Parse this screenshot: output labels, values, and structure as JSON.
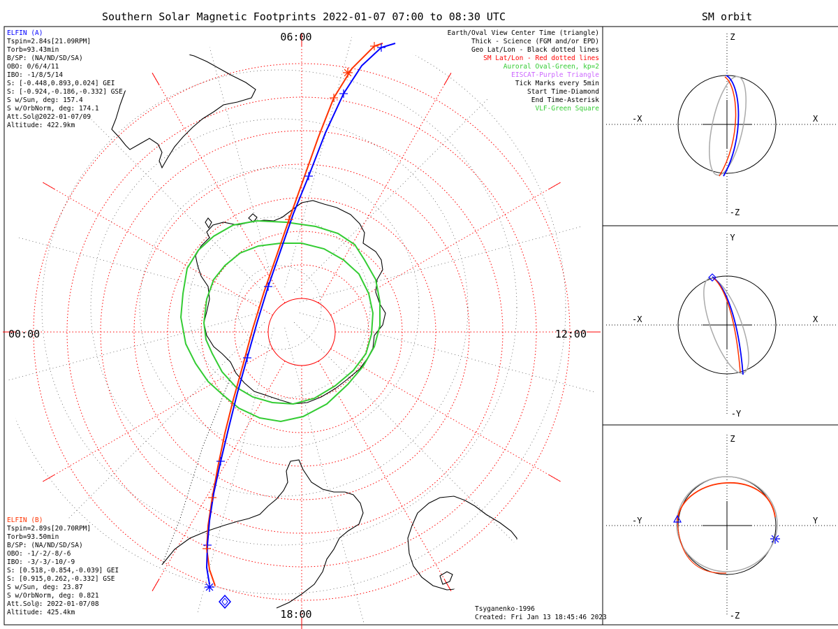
{
  "title": "Southern Solar Magnetic Footprints 2022-01-07 07:00 to 08:30 UTC",
  "side_title": "SM orbit",
  "colors": {
    "elfin_a": "#0000ff",
    "elfin_b": "#ff3300",
    "oval": "#33cc33",
    "sm_grid": "#ff0000",
    "geo": "#000000",
    "orbit_gray": "#aaaaaa"
  },
  "hours": {
    "top": "06:00",
    "left": "00:00",
    "right": "12:00",
    "bottom": "18:00"
  },
  "elfin_a": {
    "name": "ELFIN (A)",
    "lines": [
      "Tspin=2.84s[21.09RPM]",
      "Torb=93.43min",
      "B/SP: (NA/ND/SD/SA)",
      "OBO: 0/6/4/11",
      "IBO: -1/8/5/14",
      "S: [-0.448,0.893,0.024] GEI",
      "S: [-0.924,-0.186,-0.332] GSE",
      "S w/Sun, deg: 157.4",
      "S w/OrbNorm, deg: 174.1",
      "Att.Sol@2022-01-07/09",
      "Altitude: 422.9km"
    ]
  },
  "elfin_b": {
    "name": "ELFIN (B)",
    "lines": [
      "Tspin=2.89s[20.70RPM]",
      "Torb=93.50min",
      "B/SP: (NA/ND/SD/SA)",
      "OBO: -1/-2/-8/-6",
      "IBO: -3/-3/-10/-9",
      "S: [0.518,-0.854,-0.039] GEI",
      "S: [0.915,0.262,-0.332] GSE",
      "S w/Sun, deg: 23.87",
      "S w/OrbNorm, deg: 0.821",
      "Att.Sol@: 2022-01-07/08",
      "Altitude: 425.4km"
    ]
  },
  "legend": [
    {
      "text": "Earth/Oval View Center Time (triangle)",
      "color": "#000000"
    },
    {
      "text": "Thick - Science (FGM and/or EPD)",
      "color": "#000000"
    },
    {
      "text": "Geo Lat/Lon - Black dotted lines",
      "color": "#000000"
    },
    {
      "text": "SM Lat/Lon - Red dotted lines",
      "color": "#ff0000"
    },
    {
      "text": "Auroral Oval-Green, kp=2",
      "color": "#33cc33"
    },
    {
      "text": "EISCAT-Purple Triangle",
      "color": "#cc66ff"
    },
    {
      "text": "Tick Marks every 5min",
      "color": "#000000"
    },
    {
      "text": "Start Time-Diamond",
      "color": "#000000"
    },
    {
      "text": "End Time-Asterisk",
      "color": "#000000"
    },
    {
      "text": "VLF-Green Square",
      "color": "#33cc33"
    }
  ],
  "credit": {
    "model": "Tsyganenko-1996",
    "created": "Created: Fri Jan 13 18:45:46 2023"
  },
  "panels": [
    {
      "top": "Z",
      "bottom": "-Z",
      "left": "-X",
      "right": "X"
    },
    {
      "top": "Y",
      "bottom": "-Y",
      "left": "-X",
      "right": "X"
    },
    {
      "top": "Z",
      "bottom": "-Z",
      "left": "-Y",
      "right": "Y"
    }
  ],
  "chart_data": {
    "type": "polar-map",
    "projection": "southern SM polar stereographic",
    "magnetic_local_time_labels": [
      "06:00",
      "12:00",
      "18:00",
      "00:00"
    ],
    "sm_lat_circles_deg": [
      -80,
      -70,
      -60,
      -50,
      -40,
      -30,
      -20,
      -10,
      0
    ],
    "sm_lon_step_deg": 30,
    "tracks": [
      {
        "name": "ELFIN (A)",
        "color": "#0000ff",
        "start_marker": "diamond",
        "end_marker": "asterisk",
        "tick_interval_min": 5
      },
      {
        "name": "ELFIN (B)",
        "color": "#ff3300",
        "start_marker": "diamond",
        "end_marker": "asterisk",
        "tick_interval_min": 5
      }
    ],
    "auroral_oval": {
      "kp": 2,
      "color": "#33cc33"
    }
  }
}
